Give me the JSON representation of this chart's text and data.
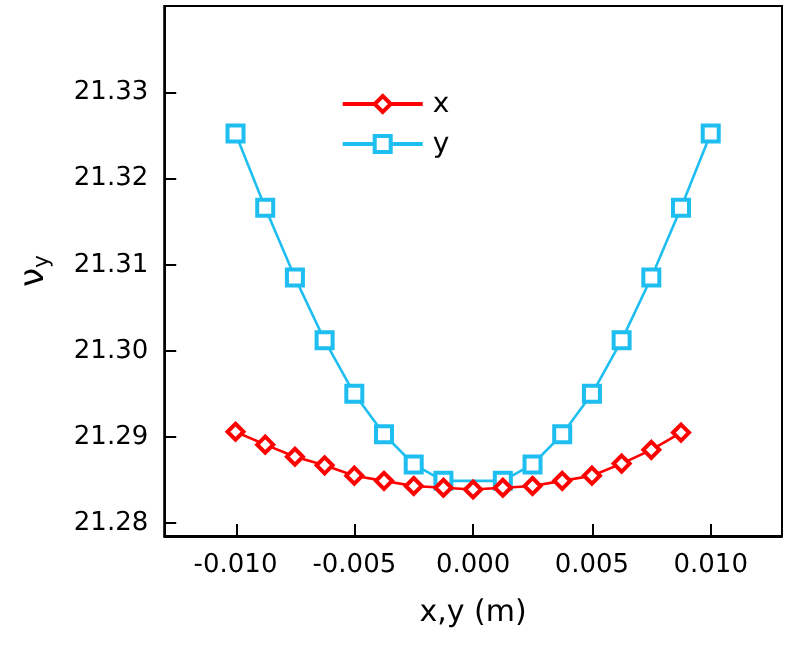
{
  "chart_data": {
    "type": "line",
    "xlabel": "x,y (m)",
    "ylabel": "ν$_{y}$",
    "xlim": [
      -0.013,
      0.013
    ],
    "ylim": [
      21.2785,
      21.34
    ],
    "xticks": [
      {
        "value": -0.01,
        "label": "-0.010"
      },
      {
        "value": -0.005,
        "label": "-0.005"
      },
      {
        "value": 0,
        "label": "0.000"
      },
      {
        "value": 0.005,
        "label": "0.005"
      },
      {
        "value": 0.01,
        "label": "0.010"
      }
    ],
    "yticks": [
      {
        "value": 21.28,
        "label": "21.28"
      },
      {
        "value": 21.29,
        "label": "21.29"
      },
      {
        "value": 21.3,
        "label": "21.30"
      },
      {
        "value": 21.31,
        "label": "21.31"
      },
      {
        "value": 21.32,
        "label": "21.32"
      },
      {
        "value": 21.33,
        "label": "21.33"
      }
    ],
    "grid": false,
    "legend": "top",
    "series": [
      {
        "name": "x",
        "color": "#ff0000",
        "marker": "diamond",
        "x": [
          -0.01,
          -0.00875,
          -0.0075,
          -0.00625,
          -0.005,
          -0.00375,
          -0.0025,
          -0.00125,
          0,
          0.00125,
          0.0025,
          0.00375,
          0.005,
          0.00625,
          0.0075,
          0.00875
        ],
        "values": [
          21.2906,
          21.2891,
          21.2877,
          21.2867,
          21.2855,
          21.2849,
          21.2843,
          21.2841,
          21.2839,
          21.2841,
          21.2843,
          21.2849,
          21.2855,
          21.2869,
          21.2885,
          21.2905
        ]
      },
      {
        "name": "y",
        "color": "#1ebef0",
        "marker": "square",
        "x": [
          -0.01,
          -0.00875,
          -0.0075,
          -0.00625,
          -0.005,
          -0.00375,
          -0.0025,
          -0.00125,
          0.00125,
          0.0025,
          0.00375,
          0.005,
          0.00625,
          0.0075,
          0.00875,
          0.01
        ],
        "values": [
          21.3252,
          21.3166,
          21.3085,
          21.3012,
          21.295,
          21.2903,
          21.2868,
          21.2849,
          21.2849,
          21.2868,
          21.2903,
          21.295,
          21.3012,
          21.3085,
          21.3166,
          21.3252
        ]
      }
    ]
  }
}
